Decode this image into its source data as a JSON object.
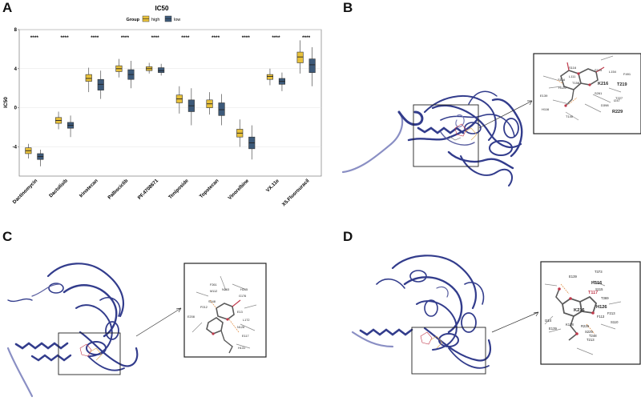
{
  "panels": {
    "a": "A",
    "b": "B",
    "c": "C",
    "d": "D"
  },
  "chart_data": {
    "type": "boxplot",
    "title": "IC50",
    "xlabel": "",
    "ylabel": "IC50",
    "ylim": [
      -7,
      8
    ],
    "yticks": [
      -4,
      0,
      4,
      8
    ],
    "legend": {
      "title": "Group",
      "placement": "top",
      "entries": [
        {
          "name": "high",
          "color": "#e8c13b"
        },
        {
          "name": "low",
          "color": "#3d5a7a"
        }
      ]
    },
    "categories": [
      "Dactinomycin",
      "Dactolisib",
      "Irinotecan",
      "Palbociclib",
      "PF.4708671",
      "Teniposide",
      "Topotecan",
      "Vinorelbine",
      "VX.11e",
      "X5.Fluorouracil"
    ],
    "significance": [
      "****",
      "****",
      "****",
      "****",
      "****",
      "****",
      "****",
      "****",
      "****",
      "****"
    ],
    "series": [
      {
        "name": "high",
        "color": "#e8c13b",
        "boxes": [
          {
            "min": -5.2,
            "q1": -4.7,
            "median": -4.4,
            "q3": -4.1,
            "max": -3.7
          },
          {
            "min": -2.2,
            "q1": -1.6,
            "median": -1.3,
            "q3": -1.0,
            "max": -0.4
          },
          {
            "min": 1.6,
            "q1": 2.7,
            "median": 3.0,
            "q3": 3.4,
            "max": 4.1
          },
          {
            "min": 3.1,
            "q1": 3.7,
            "median": 4.0,
            "q3": 4.3,
            "max": 5.0
          },
          {
            "min": 3.5,
            "q1": 3.8,
            "median": 4.0,
            "q3": 4.2,
            "max": 4.6
          },
          {
            "min": -0.6,
            "q1": 0.5,
            "median": 0.9,
            "q3": 1.3,
            "max": 2.2
          },
          {
            "min": -0.7,
            "q1": 0.0,
            "median": 0.4,
            "q3": 0.8,
            "max": 1.6
          },
          {
            "min": -4.0,
            "q1": -3.0,
            "median": -2.6,
            "q3": -2.2,
            "max": -1.2
          },
          {
            "min": 2.3,
            "q1": 2.9,
            "median": 3.2,
            "q3": 3.4,
            "max": 4.0
          },
          {
            "min": 3.5,
            "q1": 4.6,
            "median": 5.2,
            "q3": 5.7,
            "max": 6.9
          }
        ]
      },
      {
        "name": "low",
        "color": "#3d5a7a",
        "boxes": [
          {
            "min": -6.0,
            "q1": -5.3,
            "median": -5.0,
            "q3": -4.7,
            "max": -4.3
          },
          {
            "min": -3.0,
            "q1": -2.1,
            "median": -1.8,
            "q3": -1.5,
            "max": -0.8
          },
          {
            "min": 0.9,
            "q1": 1.8,
            "median": 2.4,
            "q3": 2.9,
            "max": 3.8
          },
          {
            "min": 2.0,
            "q1": 2.9,
            "median": 3.4,
            "q3": 3.9,
            "max": 4.8
          },
          {
            "min": 3.3,
            "q1": 3.6,
            "median": 3.8,
            "q3": 4.1,
            "max": 4.5
          },
          {
            "min": -1.8,
            "q1": -0.4,
            "median": 0.2,
            "q3": 0.8,
            "max": 2.0
          },
          {
            "min": -1.8,
            "q1": -0.8,
            "median": -0.2,
            "q3": 0.5,
            "max": 1.4
          },
          {
            "min": -5.3,
            "q1": -4.2,
            "median": -3.6,
            "q3": -3.0,
            "max": -1.8
          },
          {
            "min": 1.7,
            "q1": 2.4,
            "median": 2.7,
            "q3": 3.0,
            "max": 3.6
          },
          {
            "min": 2.2,
            "q1": 3.6,
            "median": 4.4,
            "q3": 5.0,
            "max": 6.2
          }
        ]
      }
    ]
  },
  "docking": {
    "b_labels": [
      "S116",
      "S115",
      "F491",
      "L154",
      "T219",
      "K216",
      "T227",
      "R229",
      "E139",
      "D398",
      "H116",
      "T140",
      "S116",
      "I247",
      "L111",
      "H126",
      "T158",
      "S261"
    ],
    "b_bold": [
      "K216",
      "T219",
      "R229"
    ],
    "c_labels": [
      "F261",
      "N263",
      "S248",
      "G176",
      "E208",
      "E13",
      "N126",
      "E117",
      "H131",
      "L172",
      "P212",
      "M112",
      "H265"
    ],
    "d_labels": [
      "T373",
      "H116",
      "S115",
      "E139",
      "T369",
      "H126",
      "F113",
      "S110",
      "K216",
      "F213",
      "T248",
      "E139",
      "S229",
      "I214",
      "R229",
      "K128",
      "T213"
    ],
    "d_bold": [
      "H116",
      "H126",
      "K216"
    ],
    "d_red": [
      "T117"
    ]
  }
}
